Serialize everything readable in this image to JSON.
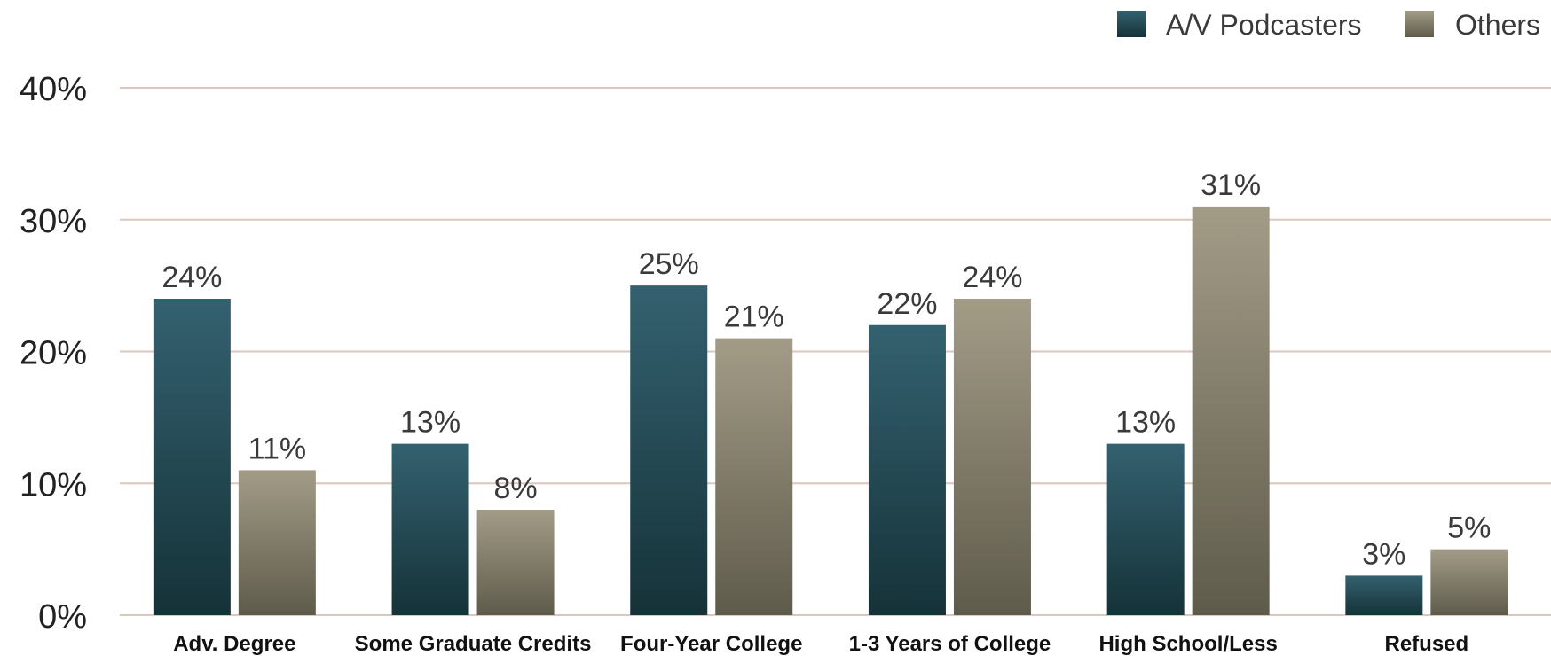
{
  "colors": {
    "podcasters_top": "#346170",
    "podcasters_bottom": "#153238",
    "others_top": "#a29c87",
    "others_bottom": "#5f5b4b",
    "gridline": "#d9c7c0",
    "text": "#3a3a3a",
    "category_text": "#111111"
  },
  "chart_data": {
    "type": "bar",
    "categories": [
      "Adv. Degree",
      "Some Graduate Credits",
      "Four-Year College",
      "1-3 Years of College",
      "High School/Less",
      "Refused"
    ],
    "series": [
      {
        "name": "A/V Podcasters",
        "values": [
          24,
          13,
          25,
          22,
          13,
          3
        ],
        "labels": [
          "24%",
          "13%",
          "25%",
          "22%",
          "13%",
          "3%"
        ]
      },
      {
        "name": "Others",
        "values": [
          11,
          8,
          21,
          24,
          31,
          5
        ],
        "labels": [
          "11%",
          "8%",
          "21%",
          "24%",
          "31%",
          "5%"
        ]
      }
    ],
    "title": "",
    "xlabel": "",
    "ylabel": "",
    "ylim": [
      0,
      40
    ],
    "yticks": [
      0,
      10,
      20,
      30,
      40
    ],
    "ytick_labels": [
      "0%",
      "10%",
      "20%",
      "30%",
      "40%"
    ],
    "grid": true,
    "legend": "top-right"
  }
}
